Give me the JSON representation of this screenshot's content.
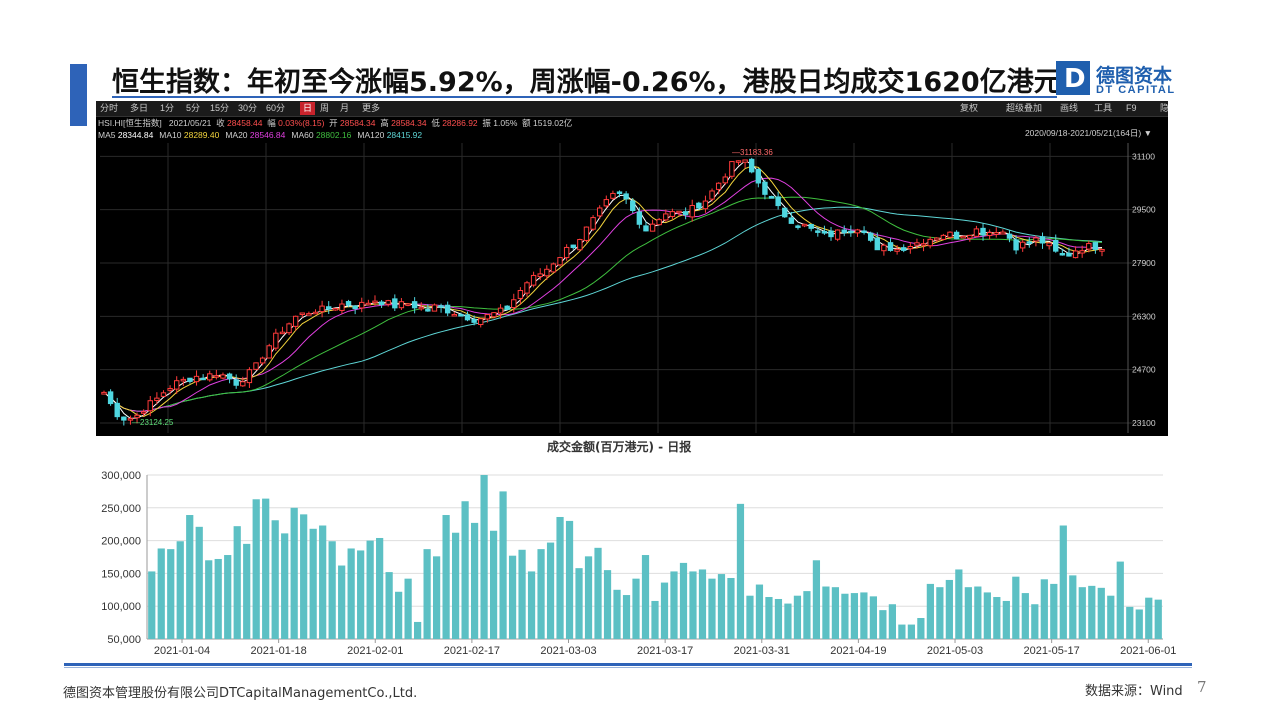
{
  "slide": {
    "title": "恒生指数：年初至今涨幅5.92%，周涨幅-0.26%，港股日均成交1620亿港元",
    "logo_cn": "德图资本",
    "logo_en": "DT CAPITAL",
    "logo_mark": "D",
    "footer_company": "德图资本管理股份有限公司DTCapitalManagementCo.,Ltd.",
    "footer_source": "数据来源：Wind",
    "page_number": "7",
    "accent_color": "#2e63b8"
  },
  "terminal": {
    "tabs": [
      "分时",
      "多日",
      "1分",
      "5分",
      "15分",
      "30分",
      "60分",
      "日",
      "周",
      "月",
      "更多"
    ],
    "active_tab": "日",
    "right_tools": [
      "复权",
      "超级叠加",
      "画线",
      "工具",
      "F9",
      "隐藏"
    ],
    "info": {
      "code": "HSI.HI[恒生指数]",
      "date": "2021/05/21",
      "close_label": "收",
      "close": "28458.44",
      "change_label": "幅",
      "change": "0.03%(8.15)",
      "open_label": "开",
      "open": "28584.34",
      "high_label": "高",
      "high": "28584.34",
      "low_label": "低",
      "low": "28286.92",
      "amp_label": "振",
      "amp": "1.05%",
      "amount_label": "额",
      "amount": "1519.02亿"
    },
    "ma": [
      {
        "label": "MA5",
        "value": "28344.84",
        "color": "#ffffff"
      },
      {
        "label": "MA10",
        "value": "28289.40",
        "color": "#f2d43d"
      },
      {
        "label": "MA20",
        "value": "28546.84",
        "color": "#e040e0"
      },
      {
        "label": "MA60",
        "value": "28802.16",
        "color": "#3fbf3f"
      },
      {
        "label": "MA120",
        "value": "28415.92",
        "color": "#5ed6d6"
      }
    ],
    "range": "2020/09/18-2021/05/21(164日)",
    "y_ticks": [
      "31100",
      "29500",
      "27900",
      "26300",
      "24700",
      "23100"
    ],
    "high_mark": "31183.36",
    "low_mark": "23124.25"
  },
  "chart_data": {
    "type": "bar",
    "title": "成交金额(百万港元) - 日报",
    "y_ticks": [
      "300,000",
      "250,000",
      "200,000",
      "150,000",
      "100,000",
      "50,000"
    ],
    "ylim": [
      50000,
      300000
    ],
    "x_ticks": [
      "2021-01-04",
      "2021-01-18",
      "2021-02-01",
      "2021-02-17",
      "2021-03-03",
      "2021-03-17",
      "2021-03-31",
      "2021-04-19",
      "2021-05-03",
      "2021-05-17",
      "2021-06-01"
    ],
    "bar_color": "#5cc0c4",
    "values": [
      153000,
      188000,
      187000,
      199000,
      239000,
      221000,
      170000,
      172000,
      178000,
      222000,
      195000,
      263000,
      264000,
      231000,
      211000,
      250000,
      240000,
      218000,
      223000,
      199000,
      162000,
      188000,
      185000,
      200000,
      204000,
      152000,
      122000,
      142000,
      76000,
      187000,
      176000,
      239000,
      212000,
      260000,
      227000,
      300000,
      215000,
      275000,
      177000,
      186000,
      153000,
      187000,
      197000,
      236000,
      230000,
      158000,
      176000,
      189000,
      155000,
      125000,
      117000,
      142000,
      178000,
      108000,
      136000,
      153000,
      166000,
      153000,
      156000,
      142000,
      149000,
      143000,
      256000,
      116000,
      133000,
      114000,
      111000,
      104000,
      116000,
      123000,
      170000,
      130000,
      129000,
      119000,
      120000,
      121000,
      115000,
      94000,
      103000,
      72000,
      72000,
      82000,
      134000,
      129000,
      140000,
      156000,
      129000,
      130000,
      121000,
      114000,
      108000,
      145000,
      120000,
      103000,
      141000,
      134000,
      223000,
      147000,
      129000,
      131000,
      128000,
      116000,
      168000,
      99000,
      95000,
      113000,
      110000
    ]
  }
}
